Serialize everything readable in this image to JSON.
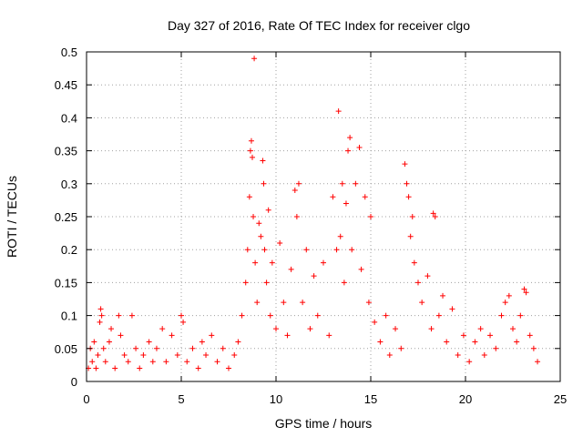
{
  "chart_data": {
    "type": "scatter",
    "title": "Day 327 of 2016, Rate Of TEC Index for receiver clgo",
    "xlabel": "GPS time / hours",
    "ylabel": "ROTI / TECUs",
    "xlim": [
      0,
      25
    ],
    "ylim": [
      0,
      0.5
    ],
    "x_ticks": [
      0,
      5,
      10,
      15,
      20,
      25
    ],
    "y_ticks": [
      0,
      0.05,
      0.1,
      0.15,
      0.2,
      0.25,
      0.3,
      0.35,
      0.4,
      0.45,
      0.5
    ],
    "grid": true,
    "marker": "+",
    "marker_color": "#ff0000",
    "points": [
      [
        0.1,
        0.02
      ],
      [
        0.2,
        0.05
      ],
      [
        0.3,
        0.03
      ],
      [
        0.4,
        0.06
      ],
      [
        0.5,
        0.02
      ],
      [
        0.6,
        0.04
      ],
      [
        0.7,
        0.09
      ],
      [
        0.75,
        0.11
      ],
      [
        0.8,
        0.1
      ],
      [
        0.9,
        0.05
      ],
      [
        1.0,
        0.03
      ],
      [
        1.2,
        0.06
      ],
      [
        1.3,
        0.08
      ],
      [
        1.5,
        0.02
      ],
      [
        1.7,
        0.1
      ],
      [
        1.8,
        0.07
      ],
      [
        2.0,
        0.04
      ],
      [
        2.2,
        0.03
      ],
      [
        2.4,
        0.1
      ],
      [
        2.6,
        0.05
      ],
      [
        2.8,
        0.02
      ],
      [
        3.0,
        0.04
      ],
      [
        3.3,
        0.06
      ],
      [
        3.5,
        0.03
      ],
      [
        3.7,
        0.05
      ],
      [
        4.0,
        0.08
      ],
      [
        4.2,
        0.03
      ],
      [
        4.5,
        0.07
      ],
      [
        4.8,
        0.04
      ],
      [
        5.0,
        0.1
      ],
      [
        5.1,
        0.09
      ],
      [
        5.3,
        0.03
      ],
      [
        5.6,
        0.05
      ],
      [
        5.9,
        0.02
      ],
      [
        6.1,
        0.06
      ],
      [
        6.3,
        0.04
      ],
      [
        6.6,
        0.07
      ],
      [
        6.9,
        0.03
      ],
      [
        7.2,
        0.05
      ],
      [
        7.5,
        0.02
      ],
      [
        7.8,
        0.04
      ],
      [
        8.0,
        0.06
      ],
      [
        8.2,
        0.1
      ],
      [
        8.4,
        0.15
      ],
      [
        8.5,
        0.2
      ],
      [
        8.6,
        0.28
      ],
      [
        8.65,
        0.35
      ],
      [
        8.7,
        0.365
      ],
      [
        8.75,
        0.34
      ],
      [
        8.8,
        0.25
      ],
      [
        8.85,
        0.49
      ],
      [
        8.9,
        0.18
      ],
      [
        9.0,
        0.12
      ],
      [
        9.1,
        0.24
      ],
      [
        9.2,
        0.22
      ],
      [
        9.3,
        0.335
      ],
      [
        9.35,
        0.3
      ],
      [
        9.4,
        0.2
      ],
      [
        9.5,
        0.15
      ],
      [
        9.6,
        0.26
      ],
      [
        9.7,
        0.1
      ],
      [
        9.8,
        0.18
      ],
      [
        10.0,
        0.08
      ],
      [
        10.2,
        0.21
      ],
      [
        10.4,
        0.12
      ],
      [
        10.6,
        0.07
      ],
      [
        10.8,
        0.17
      ],
      [
        11.0,
        0.29
      ],
      [
        11.1,
        0.25
      ],
      [
        11.2,
        0.3
      ],
      [
        11.4,
        0.12
      ],
      [
        11.6,
        0.2
      ],
      [
        11.8,
        0.08
      ],
      [
        12.0,
        0.16
      ],
      [
        12.2,
        0.1
      ],
      [
        12.5,
        0.18
      ],
      [
        12.8,
        0.07
      ],
      [
        13.0,
        0.28
      ],
      [
        13.2,
        0.2
      ],
      [
        13.3,
        0.41
      ],
      [
        13.4,
        0.22
      ],
      [
        13.5,
        0.3
      ],
      [
        13.6,
        0.15
      ],
      [
        13.7,
        0.27
      ],
      [
        13.8,
        0.35
      ],
      [
        13.9,
        0.37
      ],
      [
        14.0,
        0.2
      ],
      [
        14.2,
        0.3
      ],
      [
        14.4,
        0.355
      ],
      [
        14.5,
        0.17
      ],
      [
        14.7,
        0.28
      ],
      [
        14.9,
        0.12
      ],
      [
        15.0,
        0.25
      ],
      [
        15.2,
        0.09
      ],
      [
        15.5,
        0.06
      ],
      [
        15.8,
        0.1
      ],
      [
        16.0,
        0.04
      ],
      [
        16.3,
        0.08
      ],
      [
        16.6,
        0.05
      ],
      [
        16.8,
        0.33
      ],
      [
        16.9,
        0.3
      ],
      [
        17.0,
        0.28
      ],
      [
        17.1,
        0.22
      ],
      [
        17.2,
        0.25
      ],
      [
        17.3,
        0.18
      ],
      [
        17.5,
        0.15
      ],
      [
        17.7,
        0.12
      ],
      [
        18.0,
        0.16
      ],
      [
        18.2,
        0.08
      ],
      [
        18.3,
        0.255
      ],
      [
        18.4,
        0.25
      ],
      [
        18.6,
        0.1
      ],
      [
        18.8,
        0.13
      ],
      [
        19.0,
        0.06
      ],
      [
        19.3,
        0.11
      ],
      [
        19.6,
        0.04
      ],
      [
        19.9,
        0.07
      ],
      [
        20.2,
        0.03
      ],
      [
        20.5,
        0.06
      ],
      [
        20.8,
        0.08
      ],
      [
        21.0,
        0.04
      ],
      [
        21.3,
        0.07
      ],
      [
        21.6,
        0.05
      ],
      [
        21.9,
        0.1
      ],
      [
        22.1,
        0.12
      ],
      [
        22.3,
        0.13
      ],
      [
        22.5,
        0.08
      ],
      [
        22.7,
        0.06
      ],
      [
        22.9,
        0.1
      ],
      [
        23.1,
        0.14
      ],
      [
        23.2,
        0.135
      ],
      [
        23.4,
        0.07
      ],
      [
        23.6,
        0.05
      ],
      [
        23.8,
        0.03
      ]
    ]
  }
}
